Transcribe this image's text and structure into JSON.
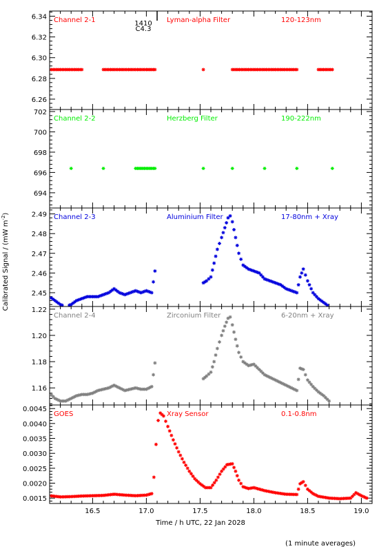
{
  "figure": {
    "xlabel": "Time / h UTC, 22 Jan 2028",
    "ylabel": "Calibrated Signal / (mW m",
    "ylabel_sup": "-2",
    "ylabel_close": ")",
    "footer": "(1 minute averages)",
    "event_marker": {
      "x": 17.1,
      "label_top": "1410",
      "label_bottom": "C4.3"
    }
  },
  "chart_data": [
    {
      "type": "scatter",
      "series": [
        {
          "name": "Channel 2-1",
          "color": "#ff0000",
          "marker": "asterisk",
          "values": [
            [
              16.05,
              6.2885
            ],
            [
              16.2,
              6.2885
            ],
            [
              16.4,
              6.2885
            ],
            [
              16.6,
              6.2885
            ],
            [
              16.8,
              6.2885
            ],
            [
              17.0,
              6.2885
            ],
            [
              17.08,
              6.2885
            ],
            [
              17.53,
              6.2885
            ],
            [
              17.8,
              6.2885
            ],
            [
              18.0,
              6.2885
            ],
            [
              18.2,
              6.2885
            ],
            [
              18.4,
              6.2885
            ],
            [
              18.6,
              6.2885
            ],
            [
              18.73,
              6.2885
            ]
          ]
        }
      ],
      "xlim": [
        16.1,
        19.1
      ],
      "ylim": [
        6.25,
        6.345
      ],
      "yticks": [
        "6.26",
        "6.28",
        "6.30",
        "6.32",
        "6.34"
      ],
      "annotations": [
        "Channel 2-1",
        "Lyman-alpha Filter",
        "120-123nm"
      ],
      "annotation_color": "#ff0000"
    },
    {
      "type": "scatter",
      "series": [
        {
          "name": "Channel 2-2",
          "color": "#00ee00",
          "marker": "asterisk",
          "values": [
            [
              16.05,
              696.4
            ],
            [
              16.3,
              696.4
            ],
            [
              16.6,
              696.4
            ],
            [
              16.9,
              696.4
            ],
            [
              17.08,
              696.4
            ],
            [
              17.53,
              696.4
            ],
            [
              17.8,
              696.4
            ],
            [
              18.1,
              696.4
            ],
            [
              18.4,
              696.4
            ],
            [
              18.73,
              696.4
            ]
          ]
        }
      ],
      "xlim": [
        16.1,
        19.1
      ],
      "ylim": [
        692.5,
        702.2
      ],
      "yticks": [
        "694",
        "696",
        "698",
        "700",
        "702"
      ],
      "annotations": [
        "Channel 2-2",
        "Herzberg Filter",
        "190-222nm"
      ],
      "annotation_color": "#00ee00"
    },
    {
      "type": "scatter",
      "series": [
        {
          "name": "Channel 2-3",
          "color": "#0000dd",
          "marker": "asterisk",
          "values": [
            [
              16.1,
              2.448
            ],
            [
              16.15,
              2.446
            ],
            [
              16.2,
              2.444
            ],
            [
              16.25,
              2.443
            ],
            [
              16.3,
              2.444
            ],
            [
              16.35,
              2.446
            ],
            [
              16.4,
              2.447
            ],
            [
              16.45,
              2.448
            ],
            [
              16.5,
              2.448
            ],
            [
              16.55,
              2.448
            ],
            [
              16.6,
              2.449
            ],
            [
              16.65,
              2.45
            ],
            [
              16.7,
              2.452
            ],
            [
              16.75,
              2.45
            ],
            [
              16.8,
              2.449
            ],
            [
              16.85,
              2.45
            ],
            [
              16.9,
              2.451
            ],
            [
              16.95,
              2.45
            ],
            [
              17.0,
              2.451
            ],
            [
              17.05,
              2.45
            ],
            [
              17.08,
              2.461
            ],
            [
              17.53,
              2.455
            ],
            [
              17.56,
              2.456
            ],
            [
              17.6,
              2.458
            ],
            [
              17.63,
              2.465
            ],
            [
              17.66,
              2.472
            ],
            [
              17.7,
              2.478
            ],
            [
              17.73,
              2.483
            ],
            [
              17.76,
              2.488
            ],
            [
              17.78,
              2.489
            ],
            [
              17.8,
              2.486
            ],
            [
              17.83,
              2.478
            ],
            [
              17.86,
              2.47
            ],
            [
              17.9,
              2.464
            ],
            [
              17.95,
              2.462
            ],
            [
              18.0,
              2.461
            ],
            [
              18.05,
              2.46
            ],
            [
              18.1,
              2.457
            ],
            [
              18.15,
              2.456
            ],
            [
              18.2,
              2.455
            ],
            [
              18.25,
              2.454
            ],
            [
              18.3,
              2.452
            ],
            [
              18.35,
              2.451
            ],
            [
              18.4,
              2.45
            ],
            [
              18.43,
              2.458
            ],
            [
              18.46,
              2.462
            ],
            [
              18.5,
              2.456
            ],
            [
              18.55,
              2.45
            ],
            [
              18.6,
              2.447
            ],
            [
              18.65,
              2.445
            ],
            [
              18.7,
              2.443
            ]
          ]
        }
      ],
      "xlim": [
        16.1,
        19.1
      ],
      "ylim": [
        2.443,
        2.493
      ],
      "yticks": [
        "2.45",
        "2.46",
        "2.47",
        "2.48",
        "2.49"
      ],
      "annotations": [
        "Channel 2-3",
        "Aluminium Filter",
        "17-80nm + Xray"
      ],
      "annotation_color": "#0000dd"
    },
    {
      "type": "scatter",
      "series": [
        {
          "name": "Channel 2-4",
          "color": "#808080",
          "marker": "asterisk",
          "values": [
            [
              16.1,
              1.156
            ],
            [
              16.15,
              1.152
            ],
            [
              16.2,
              1.15
            ],
            [
              16.25,
              1.15
            ],
            [
              16.3,
              1.152
            ],
            [
              16.35,
              1.154
            ],
            [
              16.4,
              1.155
            ],
            [
              16.45,
              1.155
            ],
            [
              16.5,
              1.156
            ],
            [
              16.55,
              1.158
            ],
            [
              16.6,
              1.159
            ],
            [
              16.65,
              1.16
            ],
            [
              16.7,
              1.162
            ],
            [
              16.75,
              1.16
            ],
            [
              16.8,
              1.158
            ],
            [
              16.85,
              1.159
            ],
            [
              16.9,
              1.16
            ],
            [
              16.95,
              1.159
            ],
            [
              17.0,
              1.159
            ],
            [
              17.05,
              1.161
            ],
            [
              17.08,
              1.179
            ],
            [
              17.53,
              1.167
            ],
            [
              17.56,
              1.169
            ],
            [
              17.6,
              1.172
            ],
            [
              17.63,
              1.18
            ],
            [
              17.66,
              1.19
            ],
            [
              17.7,
              1.2
            ],
            [
              17.73,
              1.207
            ],
            [
              17.76,
              1.213
            ],
            [
              17.78,
              1.214
            ],
            [
              17.8,
              1.208
            ],
            [
              17.83,
              1.197
            ],
            [
              17.86,
              1.187
            ],
            [
              17.9,
              1.18
            ],
            [
              17.95,
              1.177
            ],
            [
              18.0,
              1.178
            ],
            [
              18.05,
              1.174
            ],
            [
              18.1,
              1.17
            ],
            [
              18.15,
              1.168
            ],
            [
              18.2,
              1.166
            ],
            [
              18.25,
              1.164
            ],
            [
              18.3,
              1.162
            ],
            [
              18.35,
              1.16
            ],
            [
              18.4,
              1.158
            ],
            [
              18.43,
              1.175
            ],
            [
              18.46,
              1.174
            ],
            [
              18.5,
              1.166
            ],
            [
              18.55,
              1.161
            ],
            [
              18.6,
              1.157
            ],
            [
              18.65,
              1.154
            ],
            [
              18.7,
              1.15
            ]
          ]
        }
      ],
      "xlim": [
        16.1,
        19.1
      ],
      "ylim": [
        1.147,
        1.222
      ],
      "yticks": [
        "1.16",
        "1.18",
        "1.20",
        "1.22"
      ],
      "annotations": [
        "Channel 2-4",
        "Zirconium Filter",
        "6-20nm + Xray"
      ],
      "annotation_color": "#808080"
    },
    {
      "type": "scatter",
      "series": [
        {
          "name": "GOES",
          "color": "#ff0000",
          "marker": "asterisk",
          "values": [
            [
              16.1,
              0.00158
            ],
            [
              16.2,
              0.00154
            ],
            [
              16.3,
              0.00155
            ],
            [
              16.4,
              0.00157
            ],
            [
              16.5,
              0.00158
            ],
            [
              16.6,
              0.00159
            ],
            [
              16.7,
              0.00163
            ],
            [
              16.8,
              0.0016
            ],
            [
              16.9,
              0.00158
            ],
            [
              17.0,
              0.0016
            ],
            [
              17.05,
              0.00165
            ],
            [
              17.07,
              0.0022
            ],
            [
              17.09,
              0.0033
            ],
            [
              17.11,
              0.0041
            ],
            [
              17.13,
              0.00435
            ],
            [
              17.16,
              0.00425
            ],
            [
              17.2,
              0.0039
            ],
            [
              17.25,
              0.00345
            ],
            [
              17.3,
              0.00305
            ],
            [
              17.35,
              0.0027
            ],
            [
              17.4,
              0.0024
            ],
            [
              17.45,
              0.00215
            ],
            [
              17.5,
              0.00198
            ],
            [
              17.55,
              0.00185
            ],
            [
              17.6,
              0.00185
            ],
            [
              17.65,
              0.0021
            ],
            [
              17.7,
              0.0024
            ],
            [
              17.75,
              0.00262
            ],
            [
              17.8,
              0.00265
            ],
            [
              17.83,
              0.0024
            ],
            [
              17.86,
              0.0021
            ],
            [
              17.9,
              0.00188
            ],
            [
              17.95,
              0.00182
            ],
            [
              18.0,
              0.00185
            ],
            [
              18.05,
              0.0018
            ],
            [
              18.1,
              0.00175
            ],
            [
              18.2,
              0.00168
            ],
            [
              18.3,
              0.00163
            ],
            [
              18.4,
              0.00162
            ],
            [
              18.43,
              0.00198
            ],
            [
              18.46,
              0.00205
            ],
            [
              18.5,
              0.0018
            ],
            [
              18.55,
              0.00165
            ],
            [
              18.6,
              0.00156
            ],
            [
              18.7,
              0.0015
            ],
            [
              18.8,
              0.00148
            ],
            [
              18.9,
              0.0015
            ],
            [
              18.95,
              0.00168
            ],
            [
              19.0,
              0.00158
            ],
            [
              19.05,
              0.0015
            ]
          ]
        }
      ],
      "xlim": [
        16.1,
        19.1
      ],
      "ylim": [
        0.00132,
        0.00462
      ],
      "yticks": [
        "0.0015",
        "0.0020",
        "0.0025",
        "0.0030",
        "0.0035",
        "0.0040",
        "0.0045"
      ],
      "xticks": [
        "16.5",
        "17.0",
        "17.5",
        "18.0",
        "18.5",
        "19.0"
      ],
      "annotations": [
        "GOES",
        "Xray Sensor",
        "0.1-0.8nm"
      ],
      "annotation_color": "#ff0000"
    }
  ]
}
